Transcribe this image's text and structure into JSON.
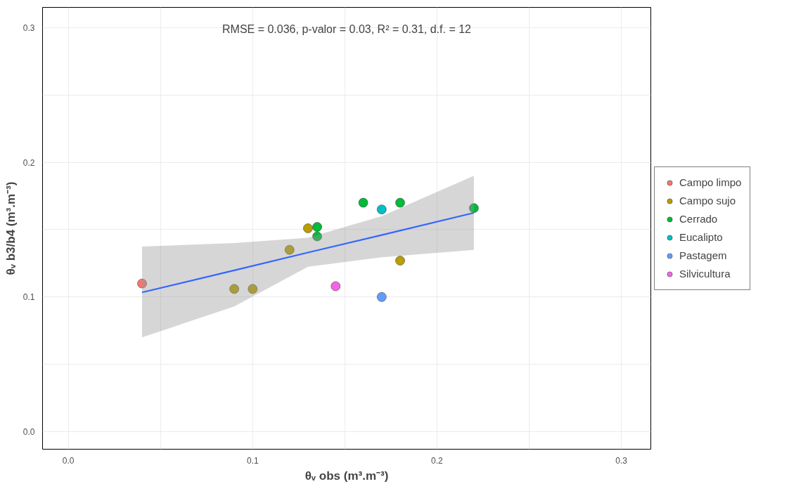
{
  "chart_data": {
    "type": "scatter",
    "xlabel": "θᵥ obs (m³.m⁻³)",
    "ylabel": "θᵥ b3/b4 (m³.m⁻³)",
    "annotations": [
      "RMSE = 0.036, p-valor = 0.03, R² = 0.31, d.f. = 12"
    ],
    "series": [
      {
        "name": "Campo limpo",
        "color": "#f8766d",
        "x": [
          0.04
        ],
        "values": [
          0.11
        ]
      },
      {
        "name": "Campo sujo",
        "color": "#b79f00",
        "x": [
          0.09,
          0.1,
          0.12,
          0.13,
          0.18
        ],
        "values": [
          0.106,
          0.106,
          0.135,
          0.151,
          0.127
        ]
      },
      {
        "name": "Cerrado",
        "color": "#00ba38",
        "x": [
          0.135,
          0.135,
          0.16,
          0.18,
          0.22
        ],
        "values": [
          0.152,
          0.145,
          0.17,
          0.17,
          0.166
        ]
      },
      {
        "name": "Eucalipto",
        "color": "#00bfc4",
        "x": [
          0.17
        ],
        "values": [
          0.165
        ]
      },
      {
        "name": "Pastagem",
        "color": "#619cff",
        "x": [
          0.17
        ],
        "values": [
          0.1
        ]
      },
      {
        "name": "Silvicultura",
        "color": "#f564e3",
        "x": [
          0.145
        ],
        "values": [
          0.108
        ]
      },
      {
        "type": "line",
        "marker": "none",
        "color": "#3366ff",
        "x": [
          0.04,
          0.09,
          0.13,
          0.17,
          0.22
        ],
        "values": [
          0.1034,
          0.1198,
          0.133,
          0.146,
          0.1625
        ],
        "lower": [
          0.07,
          0.093,
          0.1225,
          0.1295,
          0.135
        ],
        "upper": [
          0.1375,
          0.14,
          0.144,
          0.16,
          0.19
        ]
      }
    ],
    "xlim": [
      -0.014,
      0.316
    ],
    "ylim": [
      -0.013,
      0.315
    ],
    "xticks": [
      {
        "value": 0.0,
        "label": "0.0"
      },
      {
        "value": 0.05,
        "label": null
      },
      0.1,
      {
        "value": 0.15,
        "label": null
      },
      0.2,
      {
        "value": 0.25,
        "label": null
      },
      0.3
    ],
    "yticks": [
      {
        "value": 0.0,
        "label": "0.0"
      },
      {
        "value": 0.05,
        "label": null
      },
      0.1,
      {
        "value": 0.15,
        "label": null
      },
      0.2,
      {
        "value": 0.25,
        "label": null
      },
      0.3
    ],
    "grid": true,
    "legend": "right",
    "marker": "circle"
  }
}
